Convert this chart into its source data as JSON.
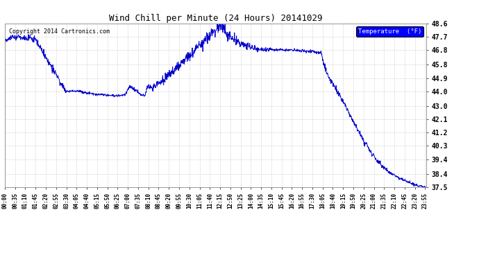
{
  "title": "Wind Chill per Minute (24 Hours) 20141029",
  "copyright": "Copyright 2014 Cartronics.com",
  "legend_label": "Temperature  (°F)",
  "line_color": "#0000CC",
  "background_color": "#ffffff",
  "plot_bg_color": "#ffffff",
  "ylim": [
    37.5,
    48.6
  ],
  "yticks": [
    37.5,
    38.4,
    39.4,
    40.3,
    41.2,
    42.1,
    43.0,
    44.0,
    44.9,
    45.8,
    46.8,
    47.7,
    48.6
  ],
  "x_tick_interval_minutes": 35,
  "total_minutes": 1440,
  "figsize": [
    6.9,
    3.75
  ],
  "dpi": 100
}
